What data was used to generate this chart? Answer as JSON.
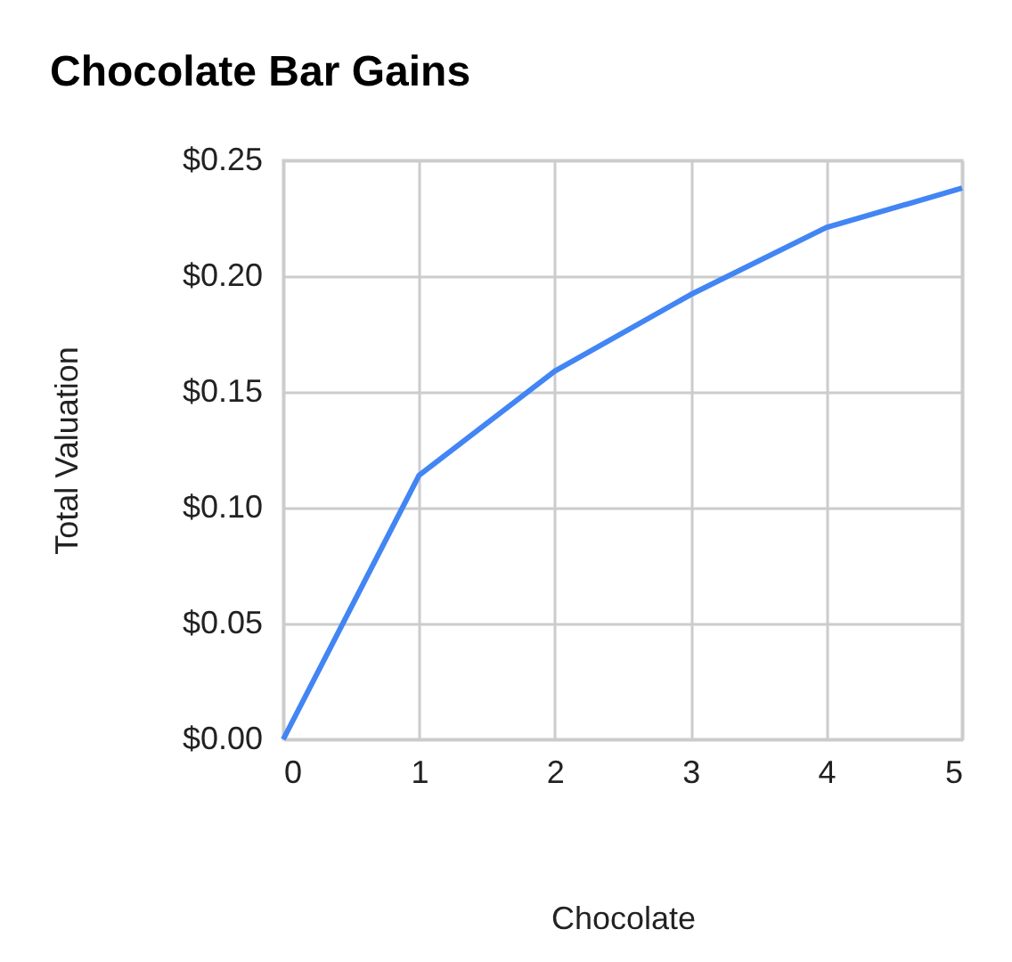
{
  "chart_data": {
    "type": "line",
    "title": "Chocolate Bar Gains",
    "xlabel": "Chocolate",
    "ylabel": "Total Valuation",
    "x": [
      0,
      1,
      2,
      3,
      4,
      5
    ],
    "series": [
      {
        "color": "#4285f4",
        "values": [
          0,
          0.114,
          0.159,
          0.192,
          0.221,
          0.238
        ]
      }
    ],
    "xlim": [
      0,
      5
    ],
    "xticks": [
      0,
      1,
      2,
      3,
      4,
      5
    ],
    "ylim": [
      0,
      0.25
    ],
    "yticks": [
      {
        "value": 0,
        "label": "$0.00"
      },
      {
        "value": 0.05,
        "label": "$0.05"
      },
      {
        "value": 0.1,
        "label": "$0.10"
      },
      {
        "value": 0.15,
        "label": "$0.15"
      },
      {
        "value": 0.2,
        "label": "$0.20"
      },
      {
        "value": 0.25,
        "label": "$0.25"
      }
    ],
    "grid": true,
    "marker": "none",
    "line_style": "solid"
  }
}
